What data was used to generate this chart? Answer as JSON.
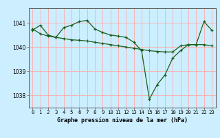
{
  "title": "Graphe pression niveau de la mer (hPa)",
  "bg_color": "#cceeff",
  "plot_bg_color": "#cceeff",
  "grid_color": "#ffaaaa",
  "line_color": "#1a5c1a",
  "outer_bg": "#cceeff",
  "x_labels": [
    "0",
    "1",
    "2",
    "3",
    "4",
    "5",
    "6",
    "7",
    "8",
    "9",
    "10",
    "11",
    "12",
    "13",
    "14",
    "15",
    "16",
    "17",
    "18",
    "19",
    "20",
    "21",
    "22",
    "23"
  ],
  "series1": [
    1040.7,
    1040.9,
    1040.5,
    1040.4,
    1040.8,
    1040.9,
    1041.05,
    1041.1,
    1040.75,
    1040.6,
    1040.5,
    1040.45,
    1040.4,
    1040.2,
    1039.85,
    1037.85,
    1038.45,
    1038.85,
    1039.55,
    1039.85,
    1040.1,
    1040.1,
    1041.05,
    1040.7
  ],
  "series2": [
    1040.75,
    1040.55,
    1040.45,
    1040.4,
    1040.35,
    1040.3,
    1040.28,
    1040.25,
    1040.2,
    1040.15,
    1040.1,
    1040.05,
    1040.0,
    1039.95,
    1039.9,
    1039.85,
    1039.82,
    1039.8,
    1039.8,
    1040.05,
    1040.1,
    1040.1,
    1040.1,
    1040.05
  ],
  "ylim_min": 1037.5,
  "ylim_max": 1041.6,
  "yticks": [
    1038,
    1039,
    1040,
    1041
  ],
  "ylabel_fontsize": 5.5,
  "xlabel_fontsize": 6.0,
  "tick_fontsize": 5.2
}
